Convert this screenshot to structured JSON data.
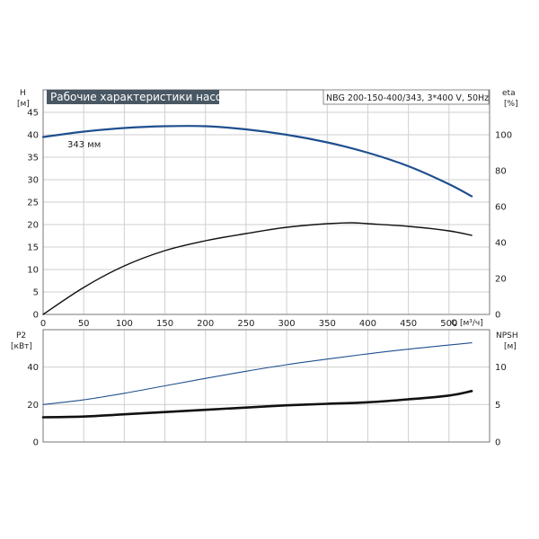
{
  "chart_data": [
    {
      "type": "line",
      "title": "Рабочие характеристики насоса",
      "subtitle": "NBG 200-150-400/343, 3*400 V, 50Hz",
      "xlabel": "Q [м³/ч]",
      "xlim": [
        0,
        550
      ],
      "x_ticks": [
        0,
        50,
        100,
        150,
        200,
        250,
        300,
        350,
        400,
        450,
        500
      ],
      "ylabel_left": "H",
      "ylabel_left_unit": "[м]",
      "ylim_left": [
        0,
        50
      ],
      "y_ticks_left": [
        0,
        5,
        10,
        15,
        20,
        25,
        30,
        35,
        40,
        45
      ],
      "ylabel_right": "eta",
      "ylabel_right_unit": "[%]",
      "ylim_right": [
        0,
        125
      ],
      "y_ticks_right": [
        0,
        20,
        40,
        60,
        80,
        100
      ],
      "grid": true,
      "annotations": [
        {
          "text": "343 мм"
        }
      ],
      "series": [
        {
          "name": "",
          "axis": "left",
          "color": "#1f4f8f",
          "x": [
            0,
            50,
            100,
            150,
            200,
            250,
            300,
            350,
            400,
            450,
            500,
            528
          ],
          "y": [
            39.5,
            40.7,
            41.5,
            41.9,
            41.9,
            41.2,
            40.0,
            38.3,
            36.0,
            33.0,
            29.0,
            26.3
          ]
        },
        {
          "name": "",
          "axis": "right",
          "color": "#111111",
          "x": [
            0,
            50,
            100,
            150,
            200,
            250,
            300,
            350,
            380,
            400,
            450,
            500,
            528
          ],
          "y": [
            0,
            15,
            27,
            35.5,
            41,
            45,
            48.5,
            50.5,
            51,
            50.5,
            49,
            46.5,
            44
          ]
        }
      ]
    },
    {
      "type": "line",
      "xlim": [
        0,
        550
      ],
      "ylabel_left": "P2",
      "ylabel_left_unit": "[кВт]",
      "ylim_left": [
        0,
        60
      ],
      "y_ticks_left": [
        0,
        20,
        40
      ],
      "ylabel_right": "NPSH",
      "ylabel_right_unit": "[м]",
      "ylim_right": [
        0,
        15
      ],
      "y_ticks_right": [
        0,
        5,
        10
      ],
      "grid": true,
      "series": [
        {
          "name": "",
          "axis": "left",
          "color": "#1f4f8f",
          "x": [
            0,
            50,
            100,
            150,
            200,
            250,
            300,
            350,
            400,
            450,
            500,
            528
          ],
          "y": [
            20,
            22.5,
            26,
            30,
            34,
            37.8,
            41.3,
            44.3,
            47.1,
            49.6,
            51.8,
            53
          ]
        },
        {
          "name": "",
          "axis": "right",
          "color": "#111111",
          "x": [
            0,
            50,
            100,
            150,
            200,
            250,
            300,
            350,
            400,
            450,
            500,
            528
          ],
          "y": [
            3.3,
            3.4,
            3.7,
            4.0,
            4.3,
            4.6,
            4.9,
            5.1,
            5.3,
            5.7,
            6.2,
            6.8
          ]
        }
      ]
    }
  ]
}
